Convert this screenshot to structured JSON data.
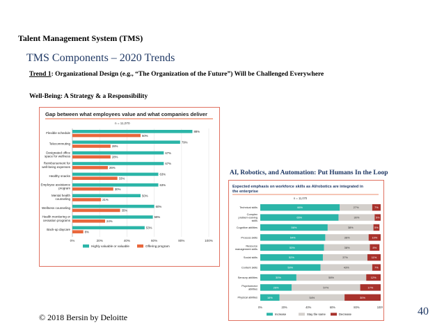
{
  "header": {
    "system_title": "Talent Management System (TMS)",
    "section_title": "TMS Components – 2020 Trends",
    "trend_prefix": "Trend 1",
    "trend_text": ": Organizational Design (e.g., “The Organization of the Future”) Will be Challenged Everywhere",
    "wellbeing_label": "Well-Being:  A Strategy & a Responsibility",
    "ai_label": "AI, Robotics, and Automation:  Put Humans In the Loop"
  },
  "footer": {
    "copyright": "© 2018 Bersin by Deloitte",
    "page_number": "40"
  },
  "colors": {
    "teal": "#2bb5a8",
    "orange": "#e8673c",
    "gray": "#d3cfcb",
    "darkred": "#a8322c",
    "title_blue": "#1f3864",
    "border": "#e07060"
  },
  "chart_data": [
    {
      "type": "bar",
      "orientation": "horizontal",
      "title": "Gap between what employees value and what companies deliver",
      "note": "n = 11,070",
      "categories": [
        "Flexible schedule",
        "Telecommuting",
        "Designated office space for wellness",
        "Reimbursement for well-being expenses",
        "Healthy snacks",
        "Employee assistance program",
        "Mental health counseling",
        "Wellness counseling",
        "Health monitoring or cessation programs",
        "Back-up daycare"
      ],
      "category_lines": [
        [
          "Flexible schedule"
        ],
        [
          "Telecommuting"
        ],
        [
          "Designated office",
          "space for wellness"
        ],
        [
          "Reimbursement for",
          "well-being expenses"
        ],
        [
          "Healthy snacks"
        ],
        [
          "Employee assistance",
          "program"
        ],
        [
          "Mental health",
          "counseling"
        ],
        [
          "Wellness counseling"
        ],
        [
          "Health monitoring or",
          "cessation programs"
        ],
        [
          "Back-up daycare"
        ]
      ],
      "series": [
        {
          "name": "Highly valuable or valuable",
          "values": [
            88,
            79,
            67,
            67,
            63,
            63,
            50,
            60,
            59,
            53
          ]
        },
        {
          "name": "Offering program",
          "values": [
            50,
            28,
            28,
            26,
            33,
            30,
            21,
            35,
            24,
            8
          ]
        }
      ],
      "value_suffix": "%",
      "xticks": [
        "0%",
        "20%",
        "40%",
        "60%",
        "80%",
        "100%"
      ],
      "xlim": [
        0,
        100
      ],
      "legend_position": "bottom"
    },
    {
      "type": "bar",
      "orientation": "horizontal",
      "stacked": true,
      "title_lines": [
        "Expected emphasis on workforce skills as AI/robotics are integrated in",
        "the enterprise"
      ],
      "note": "n = 11,070",
      "categories": [
        "Technical skills",
        "Complex problem-solving skills",
        "Cognitive abilities",
        "Process skills",
        "Resource management skills",
        "Social skills",
        "Content skills",
        "Sensory abilities",
        "Psychomotor abilities",
        "Physical abilities"
      ],
      "category_lines": [
        [
          "Technical skills"
        ],
        [
          "Complex",
          "problem-solving",
          "skills"
        ],
        [
          "Cognitive abilities"
        ],
        [
          "Process skills"
        ],
        [
          "Resource",
          "management skills"
        ],
        [
          "Social skills"
        ],
        [
          "Content skills"
        ],
        [
          "Sensory abilities"
        ],
        [
          "Psychomotor",
          "abilities"
        ],
        [
          "Physical abilities"
        ]
      ],
      "series": [
        {
          "name": "Increase",
          "values": [
            66,
            65,
            56,
            54,
            53,
            52,
            50,
            30,
            26,
            16
          ]
        },
        {
          "name": "Stay the same",
          "values": [
            27,
            30,
            38,
            36,
            38,
            37,
            43,
            58,
            57,
            54
          ]
        },
        {
          "name": "Decrease",
          "values": [
            7,
            5,
            5,
            10,
            8,
            11,
            7,
            12,
            17,
            30
          ]
        }
      ],
      "value_suffix": "%",
      "xticks": [
        "0%",
        "20%",
        "40%",
        "60%",
        "80%",
        "100%"
      ],
      "xlim": [
        0,
        100
      ],
      "legend_position": "bottom"
    }
  ]
}
